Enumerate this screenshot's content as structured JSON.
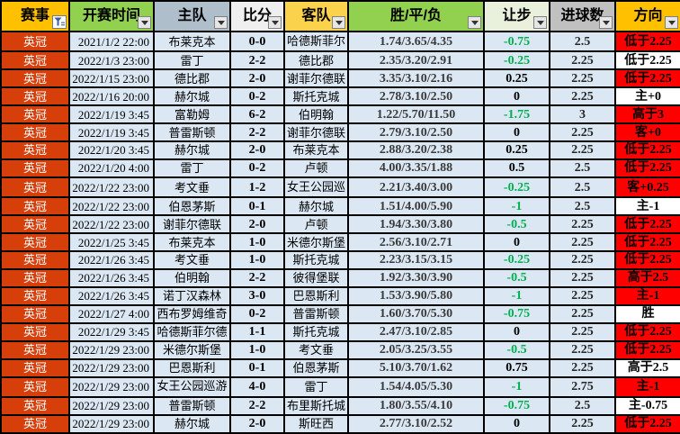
{
  "header": {
    "columns": [
      {
        "label": "赛事",
        "bg": "#FFC000",
        "button": "funnel"
      },
      {
        "label": "开赛时间",
        "bg": "#92D050",
        "button": "arrow"
      },
      {
        "label": "主队",
        "bg": "#AFBECB",
        "button": "arrow"
      },
      {
        "label": "比分",
        "bg": "#EFEFEF",
        "button": "arrow"
      },
      {
        "label": "客队",
        "bg": "#FBD24C",
        "button": "arrow"
      },
      {
        "label": "胜/平/负",
        "bg": "#92D050",
        "button": "arrow"
      },
      {
        "label": "让步",
        "bg": "#E9F1DC",
        "button": "arrow"
      },
      {
        "label": "进球数",
        "bg": "#C0C0C0",
        "button": "arrow"
      },
      {
        "label": "方向",
        "bg": "#FFC000",
        "button": "arrow"
      }
    ]
  },
  "icons": {
    "funnel": "filter-funnel-icon",
    "arrow": "chevron-down-icon"
  },
  "colors": {
    "league_cell_bg": "#D63E0A",
    "data_cell_bg": "#DBE7F3",
    "direction_red": "#FF0000",
    "direction_white": "#FFFFFF",
    "handicap_negative": "#00B050",
    "grid_border": "#000000"
  },
  "rows": [
    {
      "league": "英冠",
      "time": "2021/1/2 22:00",
      "home": "布莱克本",
      "score": "0-0",
      "away": "哈德斯菲尔德",
      "odds": "1.74/3.65/4.35",
      "handicap": "-0.75",
      "goals": "2.5",
      "direction": "低于2.25",
      "dir_bg": "red"
    },
    {
      "league": "英冠",
      "time": "2022/1/3 23:00",
      "home": "雷丁",
      "score": "2-2",
      "away": "德比郡",
      "odds": "2.35/3.20/2.91",
      "handicap": "-0.25",
      "goals": "2.25",
      "direction": "低于2.25",
      "dir_bg": "white"
    },
    {
      "league": "英冠",
      "time": "2022/1/15 23:00",
      "home": "德比郡",
      "score": "2-0",
      "away": "谢菲尔德联",
      "odds": "3.35/3.10/2.16",
      "handicap": "0.25",
      "goals": "2.25",
      "direction": "低于2.25",
      "dir_bg": "red"
    },
    {
      "league": "英冠",
      "time": "2022/1/16 20:00",
      "home": "赫尔城",
      "score": "0-2",
      "away": "斯托克城",
      "odds": "2.78/3.10/2.50",
      "handicap": "0",
      "goals": "2.25",
      "direction": "主+0",
      "dir_bg": "white"
    },
    {
      "league": "英冠",
      "time": "2022/1/19 3:45",
      "home": "富勒姆",
      "score": "6-2",
      "away": "伯明翰",
      "odds": "1.22/5.70/11.50",
      "handicap": "-1.75",
      "goals": "3",
      "direction": "高于3",
      "dir_bg": "red"
    },
    {
      "league": "英冠",
      "time": "2022/1/19 3:45",
      "home": "普雷斯顿",
      "score": "2-2",
      "away": "谢菲尔德联",
      "odds": "2.79/3.10/2.50",
      "handicap": "0",
      "goals": "2.25",
      "direction": "客+0",
      "dir_bg": "red"
    },
    {
      "league": "英冠",
      "time": "2022/1/20 3:45",
      "home": "赫尔城",
      "score": "2-0",
      "away": "布莱克本",
      "odds": "2.88/3.20/2.38",
      "handicap": "0.25",
      "goals": "2.25",
      "direction": "低于2.25",
      "dir_bg": "red"
    },
    {
      "league": "英冠",
      "time": "2022/1/20 4:00",
      "home": "雷丁",
      "score": "0-2",
      "away": "卢顿",
      "odds": "4.00/3.35/1.88",
      "handicap": "0.5",
      "goals": "2.5",
      "direction": "低于2.25",
      "dir_bg": "red"
    },
    {
      "league": "英冠",
      "time": "2022/1/22 23:00",
      "home": "考文垂",
      "score": "1-2",
      "away": "女王公园巡游者",
      "odds": "2.21/3.40/3.00",
      "handicap": "-0.25",
      "goals": "2.5",
      "direction": "客+0.25",
      "dir_bg": "red"
    },
    {
      "league": "英冠",
      "time": "2022/1/22 23:00",
      "home": "伯恩茅斯",
      "score": "0-1",
      "away": "赫尔城",
      "odds": "1.51/4.00/5.90",
      "handicap": "-1",
      "goals": "2.5",
      "direction": "主-1",
      "dir_bg": "white"
    },
    {
      "league": "英冠",
      "time": "2022/1/22 23:00",
      "home": "谢菲尔德联",
      "score": "2-0",
      "away": "卢顿",
      "odds": "1.94/3.30/3.80",
      "handicap": "-0.5",
      "goals": "2.25",
      "direction": "低于2.25",
      "dir_bg": "red"
    },
    {
      "league": "英冠",
      "time": "2022/1/25 3:45",
      "home": "布莱克本",
      "score": "1-0",
      "away": "米德尔斯堡",
      "odds": "2.56/3.10/2.71",
      "handicap": "0",
      "goals": "2.25",
      "direction": "低于2.25",
      "dir_bg": "red"
    },
    {
      "league": "英冠",
      "time": "2022/1/26 3:45",
      "home": "考文垂",
      "score": "1-0",
      "away": "斯托克城",
      "odds": "2.23/3.15/3.15",
      "handicap": "-0.25",
      "goals": "2.25",
      "direction": "低于2.25",
      "dir_bg": "red"
    },
    {
      "league": "英冠",
      "time": "2022/1/26 3:45",
      "home": "伯明翰",
      "score": "2-2",
      "away": "彼得堡联",
      "odds": "1.92/3.30/3.90",
      "handicap": "-0.5",
      "goals": "2.25",
      "direction": "高于2.5",
      "dir_bg": "red"
    },
    {
      "league": "英冠",
      "time": "2022/1/26 3:45",
      "home": "诺丁汉森林",
      "score": "3-0",
      "away": "巴恩斯利",
      "odds": "1.53/3.90/5.80",
      "handicap": "-1",
      "goals": "2.25",
      "direction": "主-1",
      "dir_bg": "red"
    },
    {
      "league": "英冠",
      "time": "2022/1/27 4:00",
      "home": "西布罗姆维奇",
      "score": "0-2",
      "away": "普雷斯顿",
      "odds": "1.60/3.70/5.30",
      "handicap": "-0.75",
      "goals": "2.25",
      "direction": "胜",
      "dir_bg": "white"
    },
    {
      "league": "英冠",
      "time": "2022/1/29 3:45",
      "home": "哈德斯菲尔德",
      "score": "1-1",
      "away": "斯托克城",
      "odds": "2.47/3.10/2.85",
      "handicap": "0",
      "goals": "2.25",
      "direction": "低于2.25",
      "dir_bg": "red"
    },
    {
      "league": "英冠",
      "time": "2022/1/29 23:00",
      "home": "米德尔斯堡",
      "score": "1-0",
      "away": "考文垂",
      "odds": "2.05/3.25/3.55",
      "handicap": "-0.5",
      "goals": "2.25",
      "direction": "低于2.25",
      "dir_bg": "red"
    },
    {
      "league": "英冠",
      "time": "2022/1/29 23:00",
      "home": "巴恩斯利",
      "score": "0-1",
      "away": "伯恩茅斯",
      "odds": "5.10/3.70/1.62",
      "handicap": "0.75",
      "goals": "2.25",
      "direction": "高于2.5",
      "dir_bg": "white"
    },
    {
      "league": "英冠",
      "time": "2022/1/29 23:00",
      "home": "女王公园巡游者",
      "score": "4-0",
      "away": "雷丁",
      "odds": "1.54/4.05/5.30",
      "handicap": "-1",
      "goals": "2.75",
      "direction": "主-1",
      "dir_bg": "red"
    },
    {
      "league": "英冠",
      "time": "2022/1/29 23:00",
      "home": "普雷斯顿",
      "score": "2-2",
      "away": "布里斯托城",
      "odds": "1.80/3.55/4.10",
      "handicap": "-0.75",
      "goals": "2.5",
      "direction": "主-0.75",
      "dir_bg": "white"
    },
    {
      "league": "英冠",
      "time": "2022/1/29 23:00",
      "home": "赫尔城",
      "score": "2-0",
      "away": "斯旺西",
      "odds": "2.77/3.10/2.52",
      "handicap": "0",
      "goals": "2.25",
      "direction": "低于2.25",
      "dir_bg": "red"
    }
  ]
}
